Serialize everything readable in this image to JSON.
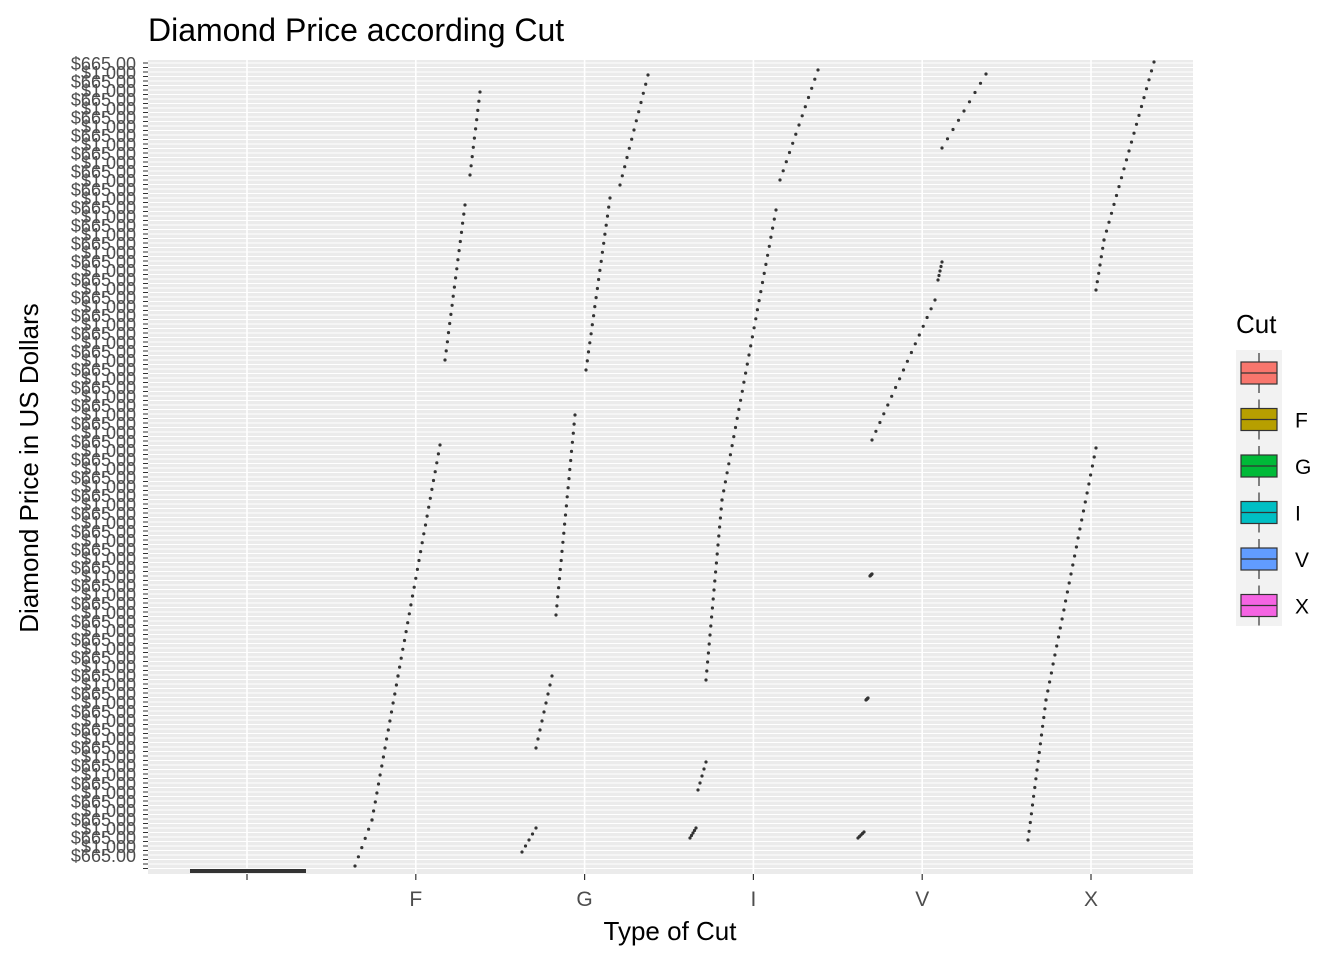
{
  "chart_data": {
    "type": "boxplot",
    "title": "Diamond Price according Cut",
    "xlabel": "Type of Cut",
    "ylabel": "Diamond Price in US Dollars",
    "categories": [
      "",
      "F",
      "G",
      "I",
      "V",
      "X"
    ],
    "legend": {
      "title": "Cut",
      "position": "right",
      "items": [
        {
          "label": "",
          "color": "#F8766D"
        },
        {
          "label": "F",
          "color": "#B79F00"
        },
        {
          "label": "G",
          "color": "#00BA38"
        },
        {
          "label": "I",
          "color": "#00BFC4"
        },
        {
          "label": "V",
          "color": "#619CFF"
        },
        {
          "label": "X",
          "color": "#F564E3"
        }
      ]
    },
    "y_axis_note": "Price is a discrete (text) axis with several hundred overlapping labels such as $1,000 ... $665.00; individual labels are unreadable",
    "y_visible_tick_fragments": [
      "$1,000",
      "$665.00"
    ],
    "grid": true,
    "background": "#EBEBEB",
    "series": [
      {
        "name": "",
        "values": [
          0
        ]
      },
      {
        "name": "F",
        "values": []
      },
      {
        "name": "G",
        "values": []
      },
      {
        "name": "I",
        "values": []
      },
      {
        "name": "V",
        "values": []
      },
      {
        "name": "X",
        "values": []
      }
    ]
  }
}
